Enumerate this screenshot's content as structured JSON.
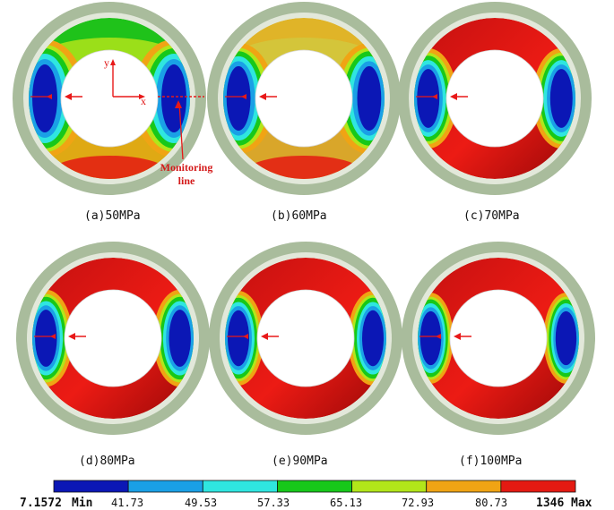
{
  "panels": [
    {
      "caption": "(a)50MPa"
    },
    {
      "caption": "(b)60MPa"
    },
    {
      "caption": "(c)70MPa"
    },
    {
      "caption": "(d)80MPa"
    },
    {
      "caption": "(e)90MPa"
    },
    {
      "caption": "(f)100MPa"
    }
  ],
  "annotation": {
    "line1": "Monitoring",
    "line2": "line",
    "axis_x": "x",
    "axis_y": "y"
  },
  "legend": {
    "min_value": "7.1572",
    "min_label": "Min",
    "max_value": "1346",
    "max_label": "Max",
    "ticks": [
      "41.73",
      "49.53",
      "57.33",
      "65.13",
      "72.93",
      "80.73"
    ],
    "colors": [
      "#0b17b5",
      "#1aa0e6",
      "#2fe6e0",
      "#17c81a",
      "#b2e61a",
      "#f0a414",
      "#e41a12"
    ]
  }
}
